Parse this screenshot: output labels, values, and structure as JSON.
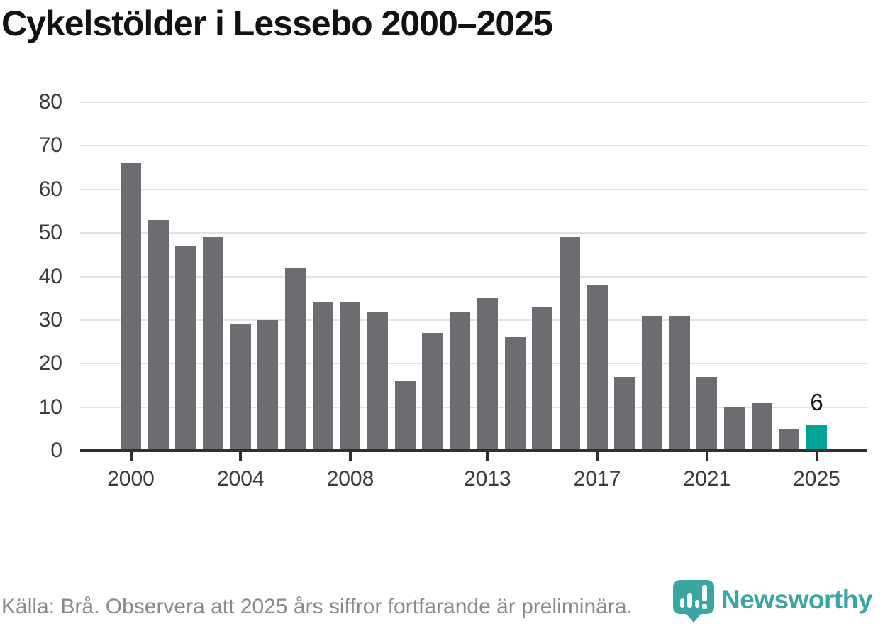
{
  "title": "Cykelstölder i Lessebo 2000–2025",
  "source_note": "Källa: Brå. Observera att 2025 års siffror fortfarande är preliminära.",
  "logo": {
    "brand": "Newsworthy",
    "icon": "newsworthy-pin-barchart-icon"
  },
  "colors": {
    "bar": "#6d6c71",
    "highlight": "#00a496",
    "grid": "#e3e3e3",
    "axis": "#2f2e32",
    "tick_text": "#3b3b3b",
    "title_text": "#121212",
    "source_text": "#8a8a8a",
    "annotation_text": "#141414",
    "brand_teal": "#3aa5a1"
  },
  "chart_data": {
    "type": "bar",
    "title": "Cykelstölder i Lessebo 2000–2025",
    "categories": [
      2000,
      2001,
      2002,
      2003,
      2004,
      2005,
      2006,
      2007,
      2008,
      2009,
      2010,
      2011,
      2012,
      2013,
      2014,
      2015,
      2016,
      2017,
      2018,
      2019,
      2020,
      2021,
      2022,
      2023,
      2024,
      2025
    ],
    "values": [
      66,
      53,
      47,
      49,
      29,
      30,
      42,
      34,
      34,
      32,
      16,
      27,
      32,
      35,
      26,
      33,
      49,
      38,
      17,
      31,
      31,
      17,
      10,
      11,
      5,
      6
    ],
    "highlight_index": 25,
    "annotations": [
      {
        "index": 25,
        "text": "6"
      }
    ],
    "xlabel": "",
    "ylabel": "",
    "ylim": [
      0,
      80
    ],
    "y_ticks": [
      0,
      10,
      20,
      30,
      40,
      50,
      60,
      70,
      80
    ],
    "x_tick_years": [
      2000,
      2004,
      2008,
      2013,
      2017,
      2021,
      2025
    ],
    "grid": "horizontal",
    "legend": "none"
  }
}
